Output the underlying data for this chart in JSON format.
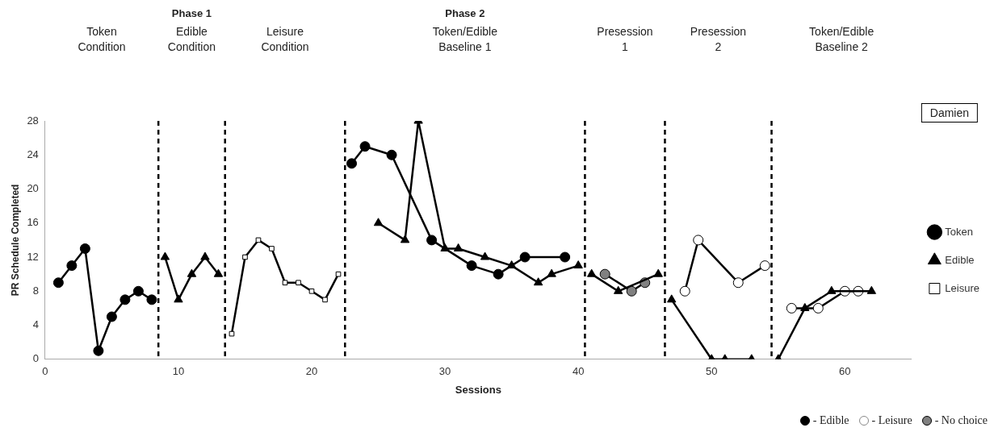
{
  "chart_data": {
    "type": "line",
    "xlabel": "Sessions",
    "ylabel": "PR Schedule Completed",
    "legend_title": "Damien",
    "legend": "right",
    "grid": false,
    "xlim": [
      0,
      65
    ],
    "xticks": [
      0,
      10,
      20,
      30,
      40,
      50,
      60
    ],
    "ylim": [
      0,
      28
    ],
    "yticks": [
      0,
      4,
      8,
      12,
      16,
      20,
      24,
      28
    ],
    "series": [
      {
        "name": "Token",
        "color": "#000000",
        "marker": "circle",
        "x": [
          1,
          2,
          3,
          4,
          5,
          6,
          7,
          8,
          15,
          23,
          24,
          26,
          29,
          32,
          34,
          36,
          39
        ],
        "values": [
          9,
          11,
          13,
          1,
          5,
          7,
          8,
          7,
          null,
          23,
          25,
          24,
          14,
          11,
          10,
          12,
          12
        ]
      },
      {
        "name": "Edible",
        "color": "#000000",
        "marker": "triangle",
        "x": [
          9,
          10,
          11,
          12,
          13,
          20,
          25,
          27,
          28,
          30,
          31,
          33,
          35,
          37,
          38,
          40,
          40.5,
          41,
          43,
          46,
          46.5,
          47,
          50,
          51,
          53,
          54,
          55,
          57,
          59,
          62
        ],
        "values": [
          12,
          7,
          10,
          12,
          10,
          null,
          16,
          14,
          28,
          13,
          13,
          12,
          11,
          9,
          10,
          11,
          null,
          10,
          8,
          10,
          null,
          7,
          0,
          0,
          0,
          null,
          0,
          6,
          8,
          8
        ]
      },
      {
        "name": "Leisure",
        "color": "#ffffff",
        "marker": "square",
        "x": [
          14,
          15,
          16,
          17,
          18,
          19,
          20,
          21,
          22
        ],
        "values": [
          3,
          12,
          14,
          13,
          9,
          9,
          8,
          7,
          10
        ]
      },
      {
        "color": "#ffffff",
        "marker": "circle",
        "x": [
          48,
          49,
          52,
          54,
          55,
          56,
          58,
          60,
          61
        ],
        "values": [
          8,
          14,
          9,
          11,
          null,
          6,
          6,
          8,
          8
        ]
      },
      {
        "color": "#808080",
        "marker": "circle",
        "x": [
          42,
          44,
          45
        ],
        "values": [
          10,
          8,
          9
        ]
      }
    ],
    "ref_lines": [
      {
        "axis": "x",
        "value": 8.5,
        "color": "#000000",
        "line_style": "dashed"
      },
      {
        "axis": "x",
        "value": 13.5,
        "color": "#000000",
        "line_style": "dashed"
      },
      {
        "axis": "x",
        "value": 22.5,
        "color": "#000000",
        "line_style": "dashed"
      },
      {
        "axis": "x",
        "value": 40.5,
        "color": "#000000",
        "line_style": "dashed"
      },
      {
        "axis": "x",
        "value": 46.5,
        "color": "#000000",
        "line_style": "dashed"
      },
      {
        "axis": "x",
        "value": 54.5,
        "color": "#000000",
        "line_style": "dashed"
      }
    ],
    "annotations": [
      "Phase 1",
      "Phase 2",
      "Token\nCondition",
      "Edible\nCondition",
      "Leisure\nCondition",
      "Token/Edible\nBaseline 1",
      "Presession\n1",
      "Presession\n2",
      "Token/Edible\nBaseline 2",
      "- Edible",
      "- Leisure",
      "- No choice"
    ]
  }
}
